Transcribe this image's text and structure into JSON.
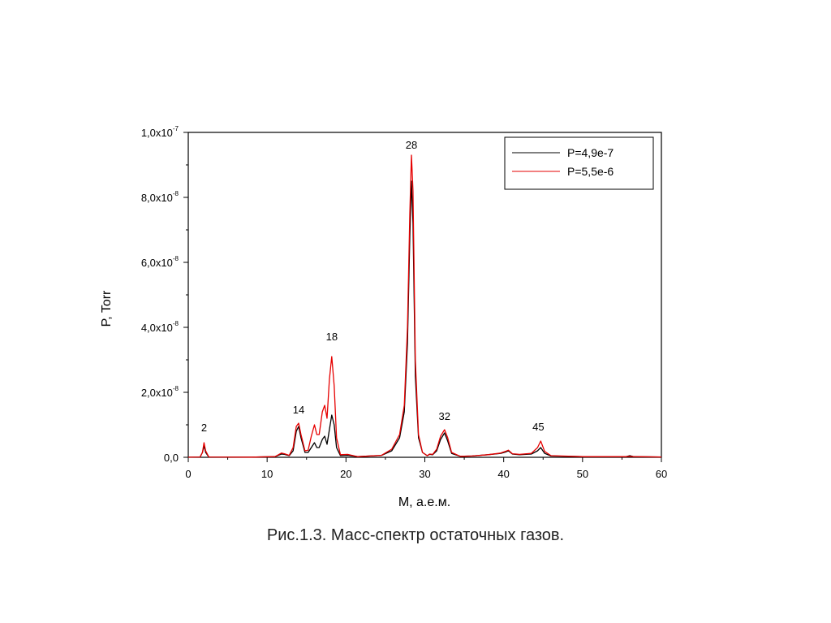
{
  "chart_data": {
    "type": "line",
    "xlabel": "M, а.е.м.",
    "ylabel": "P, Torr",
    "xlim": [
      0,
      60
    ],
    "ylim": [
      0,
      1e-07
    ],
    "x_ticks": [
      0,
      10,
      20,
      30,
      40,
      50,
      60
    ],
    "y_ticks": [
      {
        "value": 0,
        "mantissa": "0,0",
        "exp": ""
      },
      {
        "value": 2e-08,
        "mantissa": "2,0x10",
        "exp": "-8"
      },
      {
        "value": 4e-08,
        "mantissa": "4,0x10",
        "exp": "-8"
      },
      {
        "value": 6e-08,
        "mantissa": "6,0x10",
        "exp": "-8"
      },
      {
        "value": 8e-08,
        "mantissa": "8,0x10",
        "exp": "-8"
      },
      {
        "value": 1e-07,
        "mantissa": "1,0x10",
        "exp": "-7"
      }
    ],
    "grid": false,
    "legend_position": "top-right",
    "annotations": [
      {
        "text": "2",
        "x": 2,
        "y": 8e-09
      },
      {
        "text": "14",
        "x": 14,
        "y": 1.35e-08
      },
      {
        "text": "18",
        "x": 18.2,
        "y": 3.6e-08
      },
      {
        "text": "28",
        "x": 28.3,
        "y": 9.5e-08
      },
      {
        "text": "32",
        "x": 32.5,
        "y": 1.15e-08
      },
      {
        "text": "45",
        "x": 44.4,
        "y": 8.2e-09
      }
    ],
    "series": [
      {
        "name": "P=4,9e-7",
        "color": "#000000",
        "points": [
          [
            0,
            2e-11
          ],
          [
            1.5,
            1e-10
          ],
          [
            1.8,
            1.5e-09
          ],
          [
            2.0,
            3.5e-09
          ],
          [
            2.2,
            1.5e-09
          ],
          [
            2.6,
            1e-10
          ],
          [
            8,
            5e-11
          ],
          [
            11,
            2e-10
          ],
          [
            11.8,
            1e-09
          ],
          [
            12.2,
            9e-10
          ],
          [
            12.8,
            5e-10
          ],
          [
            13.3,
            2e-09
          ],
          [
            13.7,
            8e-09
          ],
          [
            14.0,
            9.5e-09
          ],
          [
            14.3,
            6e-09
          ],
          [
            14.8,
            1.5e-09
          ],
          [
            15.2,
            1.5e-09
          ],
          [
            15.6,
            3e-09
          ],
          [
            16.0,
            4.5e-09
          ],
          [
            16.3,
            3e-09
          ],
          [
            16.6,
            3e-09
          ],
          [
            17.0,
            5.5e-09
          ],
          [
            17.3,
            6.5e-09
          ],
          [
            17.6,
            4e-09
          ],
          [
            17.9,
            8.5e-09
          ],
          [
            18.2,
            1.3e-08
          ],
          [
            18.5,
            1e-08
          ],
          [
            18.8,
            3e-09
          ],
          [
            19.3,
            5e-10
          ],
          [
            20.2,
            6e-10
          ],
          [
            21.5,
            2e-10
          ],
          [
            24.5,
            6e-10
          ],
          [
            25.8,
            2e-09
          ],
          [
            26.8,
            6e-09
          ],
          [
            27.4,
            1.4e-08
          ],
          [
            27.8,
            3.5e-08
          ],
          [
            28.1,
            6.8e-08
          ],
          [
            28.3,
            8.5e-08
          ],
          [
            28.5,
            7.2e-08
          ],
          [
            28.8,
            2.5e-08
          ],
          [
            29.2,
            6e-09
          ],
          [
            29.7,
            1.5e-09
          ],
          [
            30.3,
            5e-10
          ],
          [
            30.6,
            9e-10
          ],
          [
            31.0,
            8e-10
          ],
          [
            31.5,
            2e-09
          ],
          [
            32.0,
            5.5e-09
          ],
          [
            32.5,
            7.5e-09
          ],
          [
            32.9,
            5e-09
          ],
          [
            33.4,
            1.2e-09
          ],
          [
            34.5,
            3e-10
          ],
          [
            36.0,
            4e-10
          ],
          [
            38.0,
            8e-10
          ],
          [
            39.6,
            1.2e-09
          ],
          [
            40.2,
            1.6e-09
          ],
          [
            40.6,
            2e-09
          ],
          [
            41.1,
            1e-09
          ],
          [
            42.0,
            8e-10
          ],
          [
            43.5,
            1e-09
          ],
          [
            44.3,
            2e-09
          ],
          [
            44.7,
            3e-09
          ],
          [
            45.2,
            1.2e-09
          ],
          [
            46.0,
            4e-10
          ],
          [
            50.0,
            2e-10
          ],
          [
            55.5,
            2e-10
          ],
          [
            56.0,
            5e-10
          ],
          [
            56.5,
            2e-10
          ],
          [
            60,
            1e-10
          ]
        ]
      },
      {
        "name": "P=5,5e-6",
        "color": "#e60000",
        "points": [
          [
            0,
            2e-11
          ],
          [
            1.5,
            1e-10
          ],
          [
            1.8,
            1.5e-09
          ],
          [
            2.0,
            4.5e-09
          ],
          [
            2.2,
            2e-09
          ],
          [
            2.6,
            1e-10
          ],
          [
            8,
            5e-11
          ],
          [
            11,
            2e-10
          ],
          [
            11.8,
            1.3e-09
          ],
          [
            12.2,
            1.1e-09
          ],
          [
            12.8,
            6e-10
          ],
          [
            13.3,
            3e-09
          ],
          [
            13.7,
            9.5e-09
          ],
          [
            14.0,
            1.05e-08
          ],
          [
            14.3,
            7e-09
          ],
          [
            14.8,
            2e-09
          ],
          [
            15.2,
            2.2e-09
          ],
          [
            15.6,
            6.5e-09
          ],
          [
            16.0,
            1e-08
          ],
          [
            16.3,
            7e-09
          ],
          [
            16.6,
            7e-09
          ],
          [
            17.0,
            1.4e-08
          ],
          [
            17.3,
            1.6e-08
          ],
          [
            17.6,
            1.2e-08
          ],
          [
            17.9,
            2.4e-08
          ],
          [
            18.2,
            3.1e-08
          ],
          [
            18.5,
            2.2e-08
          ],
          [
            18.8,
            6e-09
          ],
          [
            19.3,
            8e-10
          ],
          [
            20.2,
            9e-10
          ],
          [
            21.5,
            2e-10
          ],
          [
            24.5,
            6e-10
          ],
          [
            25.8,
            2.5e-09
          ],
          [
            26.8,
            7e-09
          ],
          [
            27.4,
            1.6e-08
          ],
          [
            27.8,
            4e-08
          ],
          [
            28.1,
            7.5e-08
          ],
          [
            28.3,
            9.3e-08
          ],
          [
            28.5,
            8.2e-08
          ],
          [
            28.8,
            3e-08
          ],
          [
            29.2,
            7e-09
          ],
          [
            29.7,
            1.5e-09
          ],
          [
            30.3,
            5e-10
          ],
          [
            30.6,
            1e-09
          ],
          [
            31.0,
            9e-10
          ],
          [
            31.5,
            2.5e-09
          ],
          [
            32.0,
            6.5e-09
          ],
          [
            32.5,
            8.5e-09
          ],
          [
            32.9,
            6e-09
          ],
          [
            33.4,
            1.5e-09
          ],
          [
            34.5,
            3e-10
          ],
          [
            36.0,
            4e-10
          ],
          [
            38.0,
            8e-10
          ],
          [
            39.6,
            1.3e-09
          ],
          [
            40.2,
            1.8e-09
          ],
          [
            40.6,
            2.2e-09
          ],
          [
            41.1,
            1.1e-09
          ],
          [
            42.0,
            9e-10
          ],
          [
            43.5,
            1.2e-09
          ],
          [
            44.3,
            3e-09
          ],
          [
            44.7,
            5e-09
          ],
          [
            45.2,
            1.8e-09
          ],
          [
            46.0,
            5e-10
          ],
          [
            50.0,
            2e-10
          ],
          [
            55.5,
            2e-10
          ],
          [
            56.0,
            3e-10
          ],
          [
            56.5,
            2e-10
          ],
          [
            60,
            1e-10
          ]
        ]
      }
    ]
  },
  "caption": "Рис.1.3. Масс-спектр остаточных газов."
}
